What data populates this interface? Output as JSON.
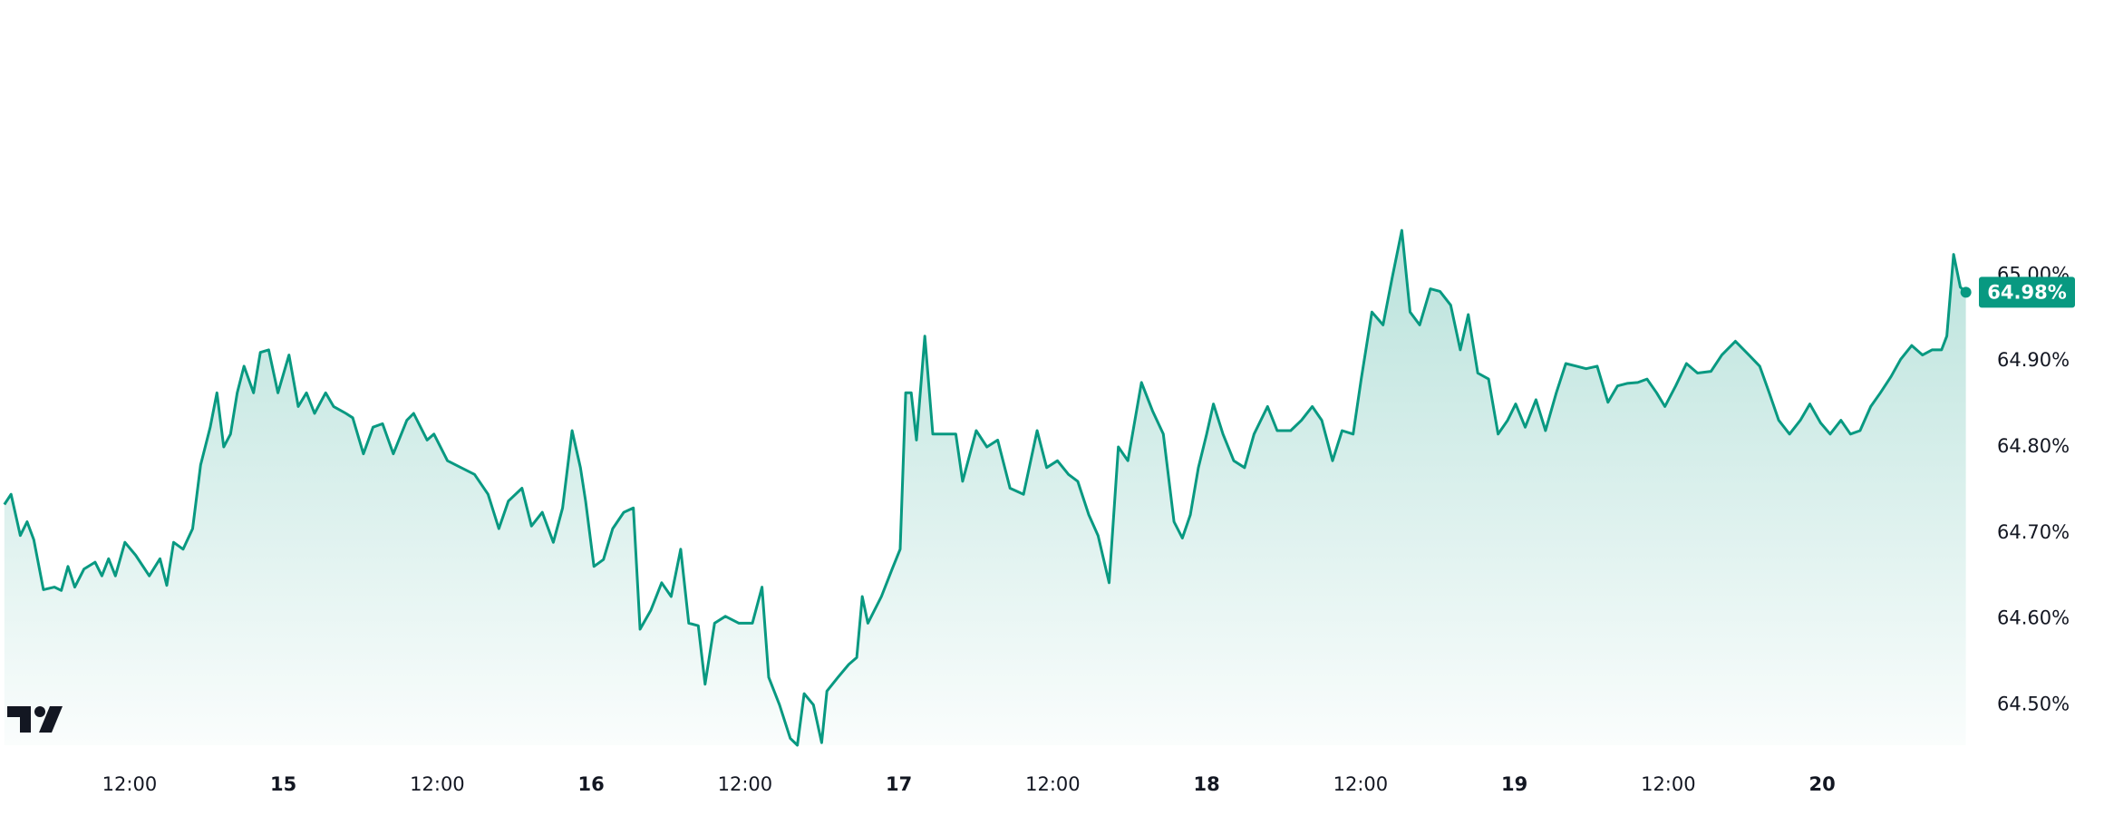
{
  "chart_data": {
    "type": "area",
    "color": "#089981",
    "xlim": [
      14.079,
      20.471
    ],
    "xticks": [
      {
        "value": 14.5,
        "label": "12:00"
      },
      15,
      {
        "value": 15.5,
        "label": "12:00"
      },
      16,
      {
        "value": 16.5,
        "label": "12:00"
      },
      17,
      {
        "value": 17.5,
        "label": "12:00"
      },
      18,
      {
        "value": 18.5,
        "label": "12:00"
      },
      19,
      {
        "value": 19.5,
        "label": "12:00"
      },
      20
    ],
    "ylim": [
      64.453,
      65.32
    ],
    "yticks": [
      {
        "value": 64.5,
        "label": "64.50%"
      },
      {
        "value": 64.6,
        "label": "64.60%"
      },
      {
        "value": 64.7,
        "label": "64.70%"
      },
      {
        "value": 64.8,
        "label": "64.80%"
      },
      {
        "value": 64.9,
        "label": "64.90%"
      },
      {
        "value": 65.0,
        "label": "65.00%"
      }
    ],
    "last_value": {
      "value": 64.98,
      "label": "64.98%"
    },
    "x": [
      14.093,
      14.115,
      14.145,
      14.167,
      14.189,
      14.22,
      14.256,
      14.278,
      14.3,
      14.322,
      14.352,
      14.388,
      14.41,
      14.432,
      14.454,
      14.485,
      14.52,
      14.564,
      14.599,
      14.621,
      14.643,
      14.674,
      14.705,
      14.731,
      14.762,
      14.784,
      14.806,
      14.828,
      14.85,
      14.872,
      14.903,
      14.925,
      14.952,
      14.982,
      15.018,
      15.048,
      15.075,
      15.101,
      15.137,
      15.163,
      15.203,
      15.225,
      15.26,
      15.291,
      15.322,
      15.357,
      15.401,
      15.423,
      15.467,
      15.489,
      15.533,
      15.577,
      15.621,
      15.665,
      15.7,
      15.731,
      15.775,
      15.806,
      15.841,
      15.877,
      15.907,
      15.938,
      15.965,
      15.982,
      16.009,
      16.04,
      16.07,
      16.106,
      16.137,
      16.159,
      16.194,
      16.229,
      16.26,
      16.291,
      16.317,
      16.348,
      16.37,
      16.401,
      16.436,
      16.48,
      16.524,
      16.555,
      16.577,
      16.612,
      16.647,
      16.67,
      16.692,
      16.722,
      16.749,
      16.766,
      16.802,
      16.837,
      16.863,
      16.881,
      16.899,
      16.943,
      16.978,
      17.004,
      17.022,
      17.04,
      17.057,
      17.084,
      17.11,
      17.141,
      17.185,
      17.207,
      17.251,
      17.286,
      17.321,
      17.361,
      17.405,
      17.449,
      17.48,
      17.515,
      17.551,
      17.581,
      17.617,
      17.647,
      17.683,
      17.713,
      17.744,
      17.788,
      17.824,
      17.859,
      17.894,
      17.921,
      17.947,
      17.973,
      18.0,
      18.022,
      18.053,
      18.088,
      18.123,
      18.154,
      18.198,
      18.229,
      18.273,
      18.308,
      18.343,
      18.374,
      18.409,
      18.44,
      18.476,
      18.502,
      18.537,
      18.573,
      18.603,
      18.634,
      18.661,
      18.692,
      18.727,
      18.758,
      18.793,
      18.824,
      18.85,
      18.881,
      18.916,
      18.947,
      18.978,
      19.004,
      19.035,
      19.07,
      19.101,
      19.136,
      19.167,
      19.202,
      19.233,
      19.269,
      19.304,
      19.335,
      19.366,
      19.401,
      19.431,
      19.462,
      19.489,
      19.524,
      19.559,
      19.595,
      19.639,
      19.674,
      19.718,
      19.762,
      19.797,
      19.828,
      19.859,
      19.894,
      19.929,
      19.96,
      19.995,
      20.026,
      20.061,
      20.092,
      20.123,
      20.158,
      20.189,
      20.224,
      20.255,
      20.291,
      20.326,
      20.357,
      20.388,
      20.405,
      20.427,
      20.449,
      20.467
    ],
    "values": [
      64.733,
      64.745,
      64.697,
      64.713,
      64.692,
      64.634,
      64.637,
      64.633,
      64.661,
      64.637,
      64.658,
      64.666,
      64.65,
      64.67,
      64.65,
      64.689,
      64.674,
      64.65,
      64.67,
      64.639,
      64.689,
      64.681,
      64.705,
      64.779,
      64.823,
      64.863,
      64.8,
      64.815,
      64.863,
      64.894,
      64.863,
      64.91,
      64.913,
      64.863,
      64.907,
      64.847,
      64.863,
      64.839,
      64.863,
      64.847,
      64.839,
      64.834,
      64.792,
      64.823,
      64.827,
      64.792,
      64.831,
      64.839,
      64.808,
      64.815,
      64.784,
      64.776,
      64.768,
      64.745,
      64.705,
      64.737,
      64.752,
      64.708,
      64.724,
      64.689,
      64.729,
      64.819,
      64.776,
      64.737,
      64.661,
      64.669,
      64.705,
      64.724,
      64.729,
      64.588,
      64.61,
      64.642,
      64.626,
      64.681,
      64.595,
      64.592,
      64.524,
      64.595,
      64.603,
      64.595,
      64.595,
      64.637,
      64.532,
      64.5,
      64.461,
      64.453,
      64.513,
      64.5,
      64.456,
      64.516,
      64.532,
      64.547,
      64.555,
      64.626,
      64.595,
      64.626,
      64.658,
      64.681,
      64.863,
      64.863,
      64.808,
      64.929,
      64.815,
      64.815,
      64.815,
      64.76,
      64.819,
      64.8,
      64.808,
      64.752,
      64.745,
      64.819,
      64.776,
      64.784,
      64.768,
      64.76,
      64.721,
      64.697,
      64.642,
      64.8,
      64.784,
      64.875,
      64.842,
      64.815,
      64.713,
      64.694,
      64.721,
      64.776,
      64.815,
      64.85,
      64.815,
      64.784,
      64.776,
      64.815,
      64.847,
      64.819,
      64.819,
      64.831,
      64.847,
      64.831,
      64.784,
      64.819,
      64.815,
      64.879,
      64.957,
      64.942,
      64.997,
      65.052,
      64.957,
      64.942,
      64.984,
      64.981,
      64.965,
      64.913,
      64.954,
      64.886,
      64.879,
      64.815,
      64.831,
      64.85,
      64.823,
      64.855,
      64.819,
      64.863,
      64.897,
      64.894,
      64.891,
      64.894,
      64.852,
      64.871,
      64.874,
      64.875,
      64.879,
      64.863,
      64.847,
      64.871,
      64.897,
      64.886,
      64.888,
      64.907,
      64.923,
      64.907,
      64.894,
      64.863,
      64.831,
      64.815,
      64.831,
      64.85,
      64.828,
      64.815,
      64.831,
      64.815,
      64.819,
      64.847,
      64.863,
      64.882,
      64.902,
      64.918,
      64.907,
      64.913,
      64.913,
      64.929,
      65.024,
      64.986,
      64.98
    ]
  }
}
